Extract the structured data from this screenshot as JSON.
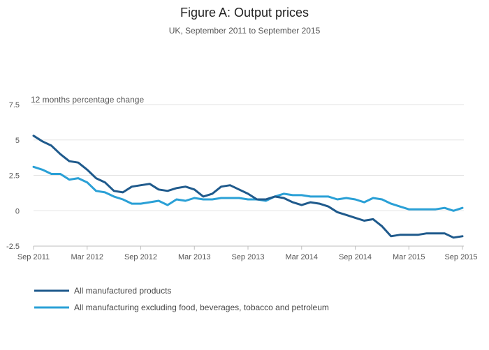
{
  "chart_data": {
    "type": "line",
    "title": "Figure A: Output prices",
    "subtitle": "UK, September 2011 to September 2015",
    "ylabel": "12 months percentage change",
    "xlabel": "",
    "ylim": [
      -2.5,
      7.5
    ],
    "yticks": [
      7.5,
      5,
      2.5,
      0,
      -2.5
    ],
    "ytick_labels": [
      "7.5",
      "5",
      "2.5",
      "0",
      "-2.5"
    ],
    "x": [
      "2011-09",
      "2011-10",
      "2011-11",
      "2011-12",
      "2012-01",
      "2012-02",
      "2012-03",
      "2012-04",
      "2012-05",
      "2012-06",
      "2012-07",
      "2012-08",
      "2012-09",
      "2012-10",
      "2012-11",
      "2012-12",
      "2013-01",
      "2013-02",
      "2013-03",
      "2013-04",
      "2013-05",
      "2013-06",
      "2013-07",
      "2013-08",
      "2013-09",
      "2013-10",
      "2013-11",
      "2013-12",
      "2014-01",
      "2014-02",
      "2014-03",
      "2014-04",
      "2014-05",
      "2014-06",
      "2014-07",
      "2014-08",
      "2014-09",
      "2014-10",
      "2014-11",
      "2014-12",
      "2015-01",
      "2015-02",
      "2015-03",
      "2015-04",
      "2015-05",
      "2015-06",
      "2015-07",
      "2015-08",
      "2015-09"
    ],
    "xticks": [
      "2011-09",
      "2012-03",
      "2012-09",
      "2013-03",
      "2013-09",
      "2014-03",
      "2014-09",
      "2015-03",
      "2015-09"
    ],
    "xtick_labels": [
      "Sep 2011",
      "Mar 2012",
      "Sep 2012",
      "Mar 2013",
      "Sep 2013",
      "Mar 2014",
      "Sep 2014",
      "Mar 2015",
      "Sep 2015"
    ],
    "grid": true,
    "legend_position": "bottom-left",
    "series": [
      {
        "name": "All manufactured products",
        "color": "#1f5a8c",
        "values": [
          5.3,
          4.9,
          4.6,
          4.0,
          3.5,
          3.4,
          2.9,
          2.3,
          2.0,
          1.4,
          1.3,
          1.7,
          1.8,
          1.9,
          1.5,
          1.4,
          1.6,
          1.7,
          1.5,
          1.0,
          1.2,
          1.7,
          1.8,
          1.5,
          1.2,
          0.8,
          0.8,
          1.0,
          0.9,
          0.6,
          0.4,
          0.6,
          0.5,
          0.3,
          -0.1,
          -0.3,
          -0.5,
          -0.7,
          -0.6,
          -1.1,
          -1.8,
          -1.7,
          -1.7,
          -1.7,
          -1.6,
          -1.6,
          -1.6,
          -1.9,
          -1.8
        ]
      },
      {
        "name": "All manufacturing excluding food, beverages, tobacco and petroleum",
        "color": "#2aa0d6",
        "values": [
          3.1,
          2.9,
          2.6,
          2.6,
          2.2,
          2.3,
          2.0,
          1.4,
          1.3,
          1.0,
          0.8,
          0.5,
          0.5,
          0.6,
          0.7,
          0.4,
          0.8,
          0.7,
          0.9,
          0.8,
          0.8,
          0.9,
          0.9,
          0.9,
          0.8,
          0.8,
          0.7,
          1.0,
          1.2,
          1.1,
          1.1,
          1.0,
          1.0,
          1.0,
          0.8,
          0.9,
          0.8,
          0.6,
          0.9,
          0.8,
          0.5,
          0.3,
          0.1,
          0.1,
          0.1,
          0.1,
          0.2,
          0.0,
          0.2
        ]
      }
    ]
  }
}
